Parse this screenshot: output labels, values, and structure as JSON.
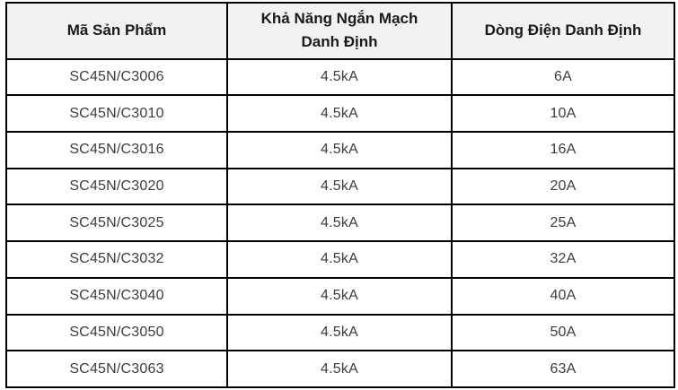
{
  "chart_data": {
    "type": "table",
    "columns": [
      "Mã Sản Phẩm",
      "Khả Năng Ngắn Mạch Danh Định",
      "Dòng Điện Danh Định"
    ],
    "rows": [
      [
        "SC45N/C3006",
        "4.5kA",
        "6A"
      ],
      [
        "SC45N/C3010",
        "4.5kA",
        "10A"
      ],
      [
        "SC45N/C3016",
        "4.5kA",
        "16A"
      ],
      [
        "SC45N/C3020",
        "4.5kA",
        "20A"
      ],
      [
        "SC45N/C3025",
        "4.5kA",
        "25A"
      ],
      [
        "SC45N/C3032",
        "4.5kA",
        "32A"
      ],
      [
        "SC45N/C3040",
        "4.5kA",
        "40A"
      ],
      [
        "SC45N/C3050",
        "4.5kA",
        "50A"
      ],
      [
        "SC45N/C3063",
        "4.5kA",
        "63A"
      ]
    ]
  },
  "colors": {
    "border": "#000000",
    "header_bg": "#f2f2f2",
    "header_text": "#1a1a1a",
    "body_text": "#3d3d3d",
    "page_bg": "#ffffff"
  }
}
